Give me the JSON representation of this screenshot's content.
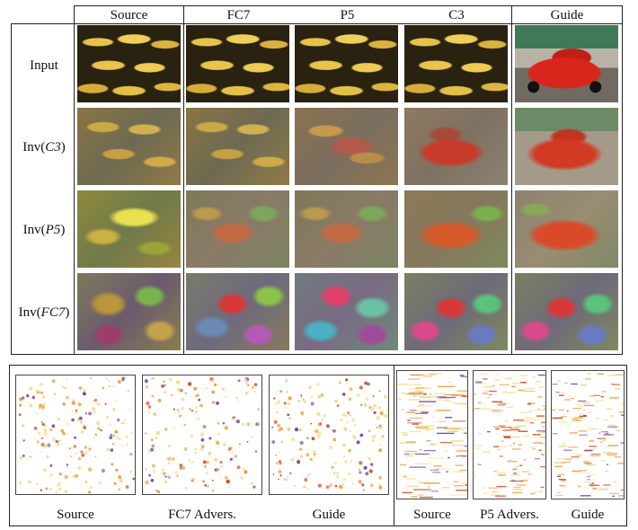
{
  "top_figure": {
    "column_headers": [
      "Source",
      "FC7",
      "P5",
      "C3",
      "Guide"
    ],
    "row_headers": [
      {
        "prefix": "Input",
        "math": "",
        "suffix": ""
      },
      {
        "prefix": "Inv(",
        "math": "C3",
        "suffix": ")"
      },
      {
        "prefix": "Inv(",
        "math": "P5",
        "suffix": ")"
      },
      {
        "prefix": "Inv(",
        "math": "FC7",
        "suffix": ")"
      }
    ],
    "images": [
      [
        "banana",
        "banana",
        "banana",
        "banana",
        "car"
      ],
      [
        "inv-c3-b",
        "inv-c3-b",
        "inv-c3-m",
        "inv-c3-r",
        "inv-c3-g"
      ],
      [
        "inv-p5-b",
        "inv-p5-m",
        "inv-p5-m",
        "inv-p5-r",
        "inv-p5-g"
      ],
      [
        "inv-fc7-b",
        "inv-fc7-m",
        "inv-fc7-r",
        "inv-fc7-g",
        "inv-fc7-g"
      ]
    ]
  },
  "bottom_figure": {
    "left_labels": [
      "Source",
      "FC7 Advers.",
      "Guide"
    ],
    "right_labels": [
      "Source",
      "P5 Advers.",
      "Guide"
    ],
    "colors": {
      "light": "#f5d98a",
      "mid": "#f0a040",
      "dark": "#d04a20",
      "purple": "#7a4aa8"
    }
  }
}
